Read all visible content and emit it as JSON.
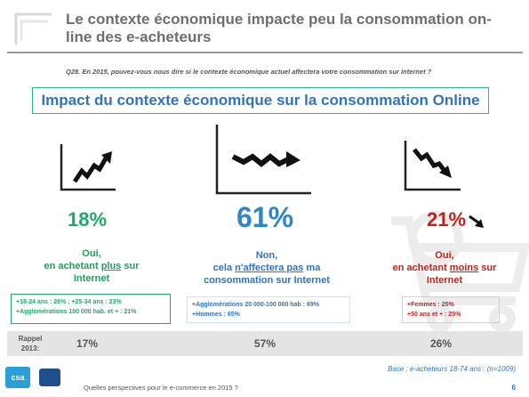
{
  "header": {
    "title": "Le contexte économique impacte peu la consommation on-line des e-acheteurs",
    "question": "Q28. En 2015, pouvez-vous nous dire si le contexte économique actuel affectera votre consommation sur Internet ?"
  },
  "banner": {
    "text": "Impact du contexte économique sur la consommation Online"
  },
  "columns": {
    "oui_plus": {
      "percent": "18%",
      "line1": "Oui,",
      "line2_prefix": "en achetant ",
      "line2_em": "plus",
      "line2_suffix": " sur",
      "line3": "Internet",
      "detail1": "+18-24 ans : 26% ; +25-34 ans : 23%",
      "detail2": "+Agglomérations 100 000 hab. et + : 21%",
      "rappel": "17%",
      "icon": "chart-up-icon"
    },
    "non": {
      "percent": "61%",
      "line1": "Non,",
      "line2_prefix": "cela ",
      "line2_em": "n'affectera pas",
      "line2_suffix": " ma",
      "line3": "consommation sur Internet",
      "detail1": "+Agglomérations 20 000-100 000 hab : 69%",
      "detail2": "+Hommes : 65%",
      "rappel": "57%",
      "icon": "chart-flat-icon"
    },
    "oui_moins": {
      "percent": "21%",
      "line1": "Oui,",
      "line2_prefix": "en achetant ",
      "line2_em": "moins",
      "line2_suffix": " sur",
      "line3": "Internet",
      "detail1": "+Femmes : 25%",
      "detail2": "+50 ans et + : 25%",
      "rappel": "26%",
      "icon": "chart-down-icon"
    }
  },
  "rappel": {
    "label1": "Rappel",
    "label2": "2013:"
  },
  "base": "Base : e-acheteurs 18-74 ans : (n=1009)",
  "footer": {
    "text": "Quelles perspectives pour le e-commerce en 2015 ?",
    "page": "6",
    "logo_text": "csa"
  },
  "colors": {
    "green": "#1fa86a",
    "blue": "#2e86c8",
    "red": "#c0221a",
    "teal": "#2eb39b"
  }
}
